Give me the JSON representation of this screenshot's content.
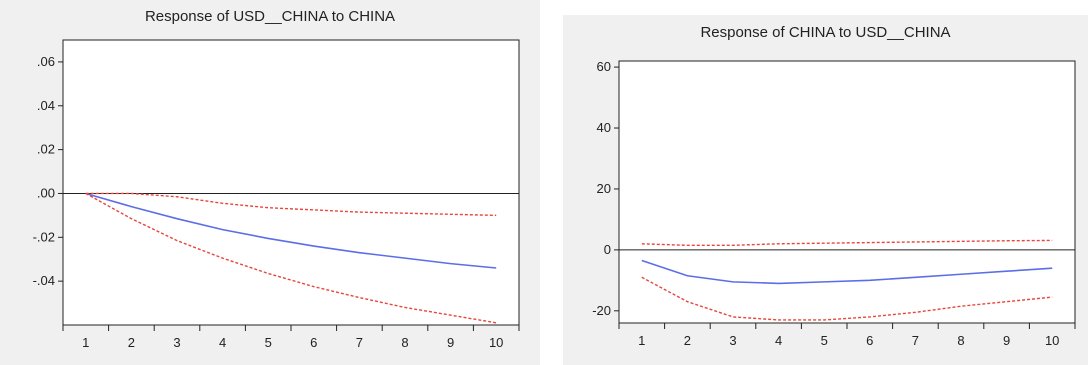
{
  "chart_data": [
    {
      "type": "line",
      "title": "Response of USD__CHINA to CHINA",
      "x": [
        1,
        2,
        3,
        4,
        5,
        6,
        7,
        8,
        9,
        10
      ],
      "ylim": [
        -0.06,
        0.07
      ],
      "ytick_values": [
        -0.04,
        -0.02,
        0.0,
        0.02,
        0.04,
        0.06
      ],
      "ytick_labels": [
        "-.04",
        "-.02",
        ".00",
        ".02",
        ".04",
        ".06"
      ],
      "xtick_labels": [
        "1",
        "2",
        "3",
        "4",
        "5",
        "6",
        "7",
        "8",
        "9",
        "10"
      ],
      "zero_line": true,
      "grid": false,
      "series": [
        {
          "role": "response",
          "style": "solid",
          "color": "#5b6ee8",
          "values": [
            0.0,
            -0.006,
            -0.0115,
            -0.0165,
            -0.0205,
            -0.024,
            -0.027,
            -0.0295,
            -0.032,
            -0.034
          ]
        },
        {
          "role": "upper band",
          "style": "dashed",
          "color": "#e8453c",
          "values": [
            0.0,
            0.0,
            -0.0015,
            -0.0045,
            -0.0065,
            -0.0075,
            -0.0085,
            -0.009,
            -0.0095,
            -0.01
          ]
        },
        {
          "role": "lower band",
          "style": "dashed",
          "color": "#e8453c",
          "values": [
            0.0,
            -0.0115,
            -0.0215,
            -0.0295,
            -0.0365,
            -0.0425,
            -0.0475,
            -0.052,
            -0.0555,
            -0.059
          ]
        }
      ]
    },
    {
      "type": "line",
      "title": "Response of CHINA to USD__CHINA",
      "x": [
        1,
        2,
        3,
        4,
        5,
        6,
        7,
        8,
        9,
        10
      ],
      "ylim": [
        -24,
        62
      ],
      "ytick_values": [
        -20,
        0,
        20,
        40,
        60
      ],
      "ytick_labels": [
        "-20",
        "0",
        "20",
        "40",
        "60"
      ],
      "xtick_labels": [
        "1",
        "2",
        "3",
        "4",
        "5",
        "6",
        "7",
        "8",
        "9",
        "10"
      ],
      "zero_line": true,
      "grid": false,
      "series": [
        {
          "role": "response",
          "style": "solid",
          "color": "#5b6ee8",
          "values": [
            -3.5,
            -8.5,
            -10.5,
            -11,
            -10.5,
            -10,
            -9,
            -8,
            -7,
            -6
          ]
        },
        {
          "role": "upper band",
          "style": "dashed",
          "color": "#e8453c",
          "values": [
            2,
            1.5,
            1.5,
            2,
            2.2,
            2.4,
            2.6,
            2.8,
            3,
            3.1
          ]
        },
        {
          "role": "lower band",
          "style": "dashed",
          "color": "#e8453c",
          "values": [
            -9,
            -17,
            -22,
            -23,
            -23,
            -22,
            -20.5,
            -18.5,
            -17,
            -15.5
          ]
        }
      ]
    }
  ]
}
